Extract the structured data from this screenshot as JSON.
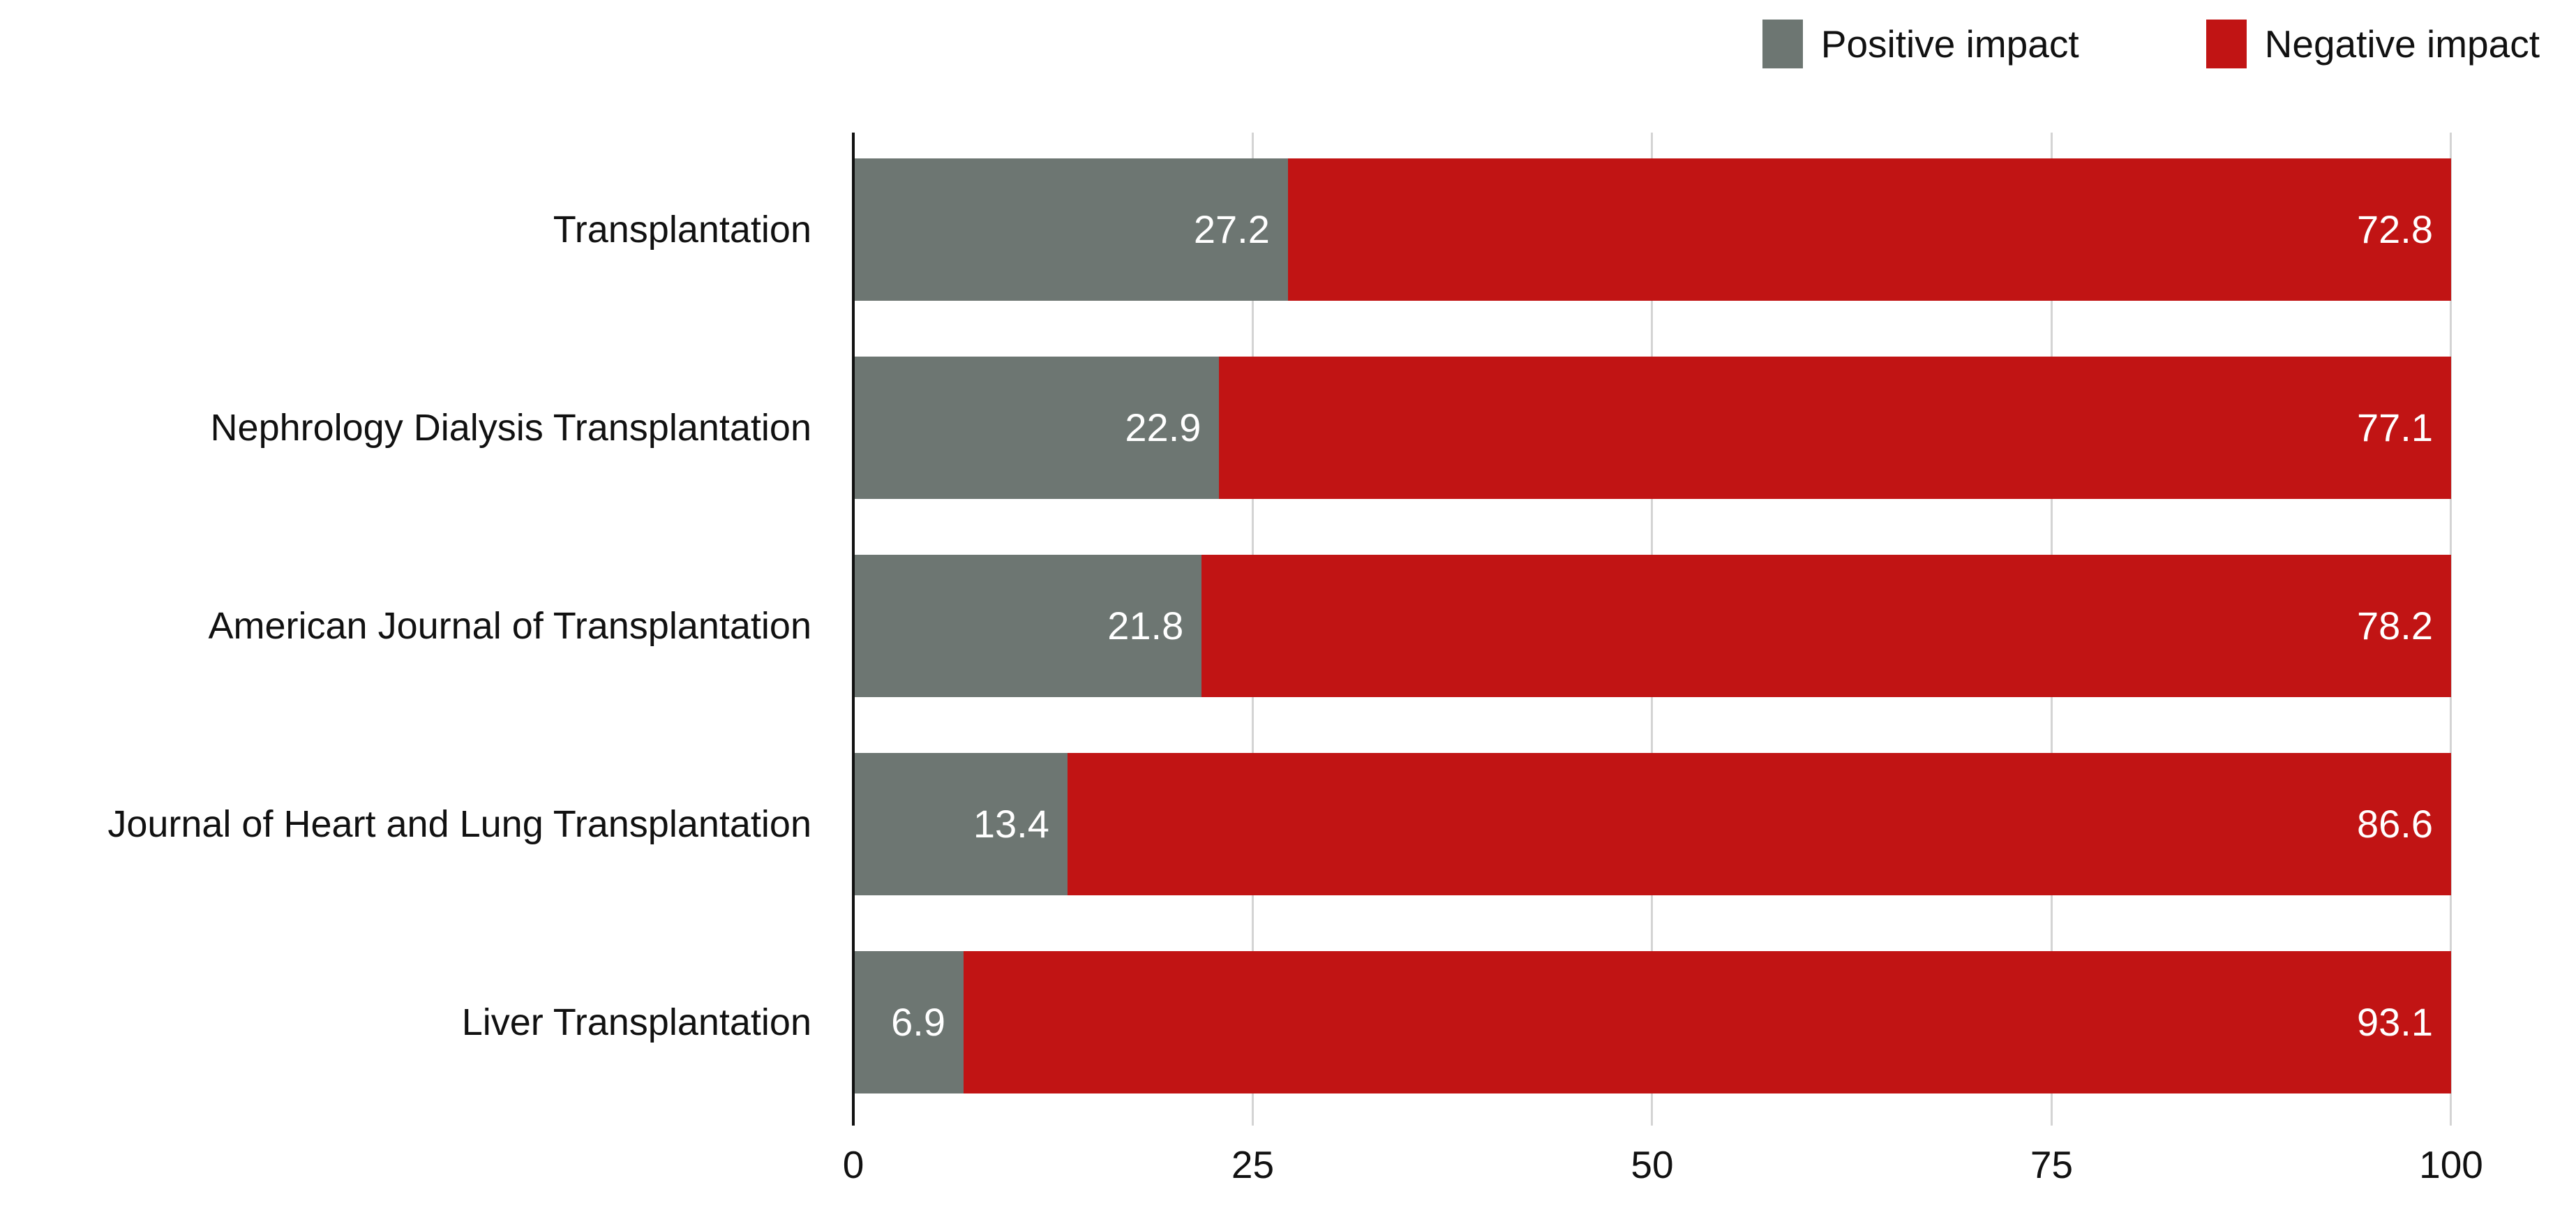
{
  "chart_data": {
    "type": "bar",
    "orientation": "horizontal",
    "stacked": true,
    "title": "",
    "xlabel": "",
    "ylabel": "",
    "xlim": [
      0,
      100
    ],
    "x_ticks": [
      "0",
      "25",
      "50",
      "75",
      "100"
    ],
    "grid": "vertical",
    "legend_position": "top-right",
    "categories": [
      "Transplantation",
      "Nephrology Dialysis Transplantation",
      "American Journal of Transplantation",
      "Journal of Heart and Lung Transplantation",
      "Liver Transplantation"
    ],
    "series": [
      {
        "name": "Positive impact",
        "color": "#6d7672",
        "label_color": "#ffffff",
        "values": [
          27.2,
          22.9,
          21.8,
          13.4,
          6.9
        ]
      },
      {
        "name": "Negative impact",
        "color": "#c11414",
        "label_color": "#ffffff",
        "values": [
          72.8,
          77.1,
          78.2,
          86.6,
          93.1
        ]
      }
    ]
  },
  "legend": {
    "items": [
      {
        "label": "Positive impact",
        "color": "#6d7672"
      },
      {
        "label": "Negative impact",
        "color": "#c11414"
      }
    ]
  },
  "colors": {
    "positive": "#6d7672",
    "negative": "#c11414",
    "gridline": "#d4d4d4",
    "axis": "#111111",
    "background": "#ffffff",
    "bar_value_text": "#ffffff"
  }
}
